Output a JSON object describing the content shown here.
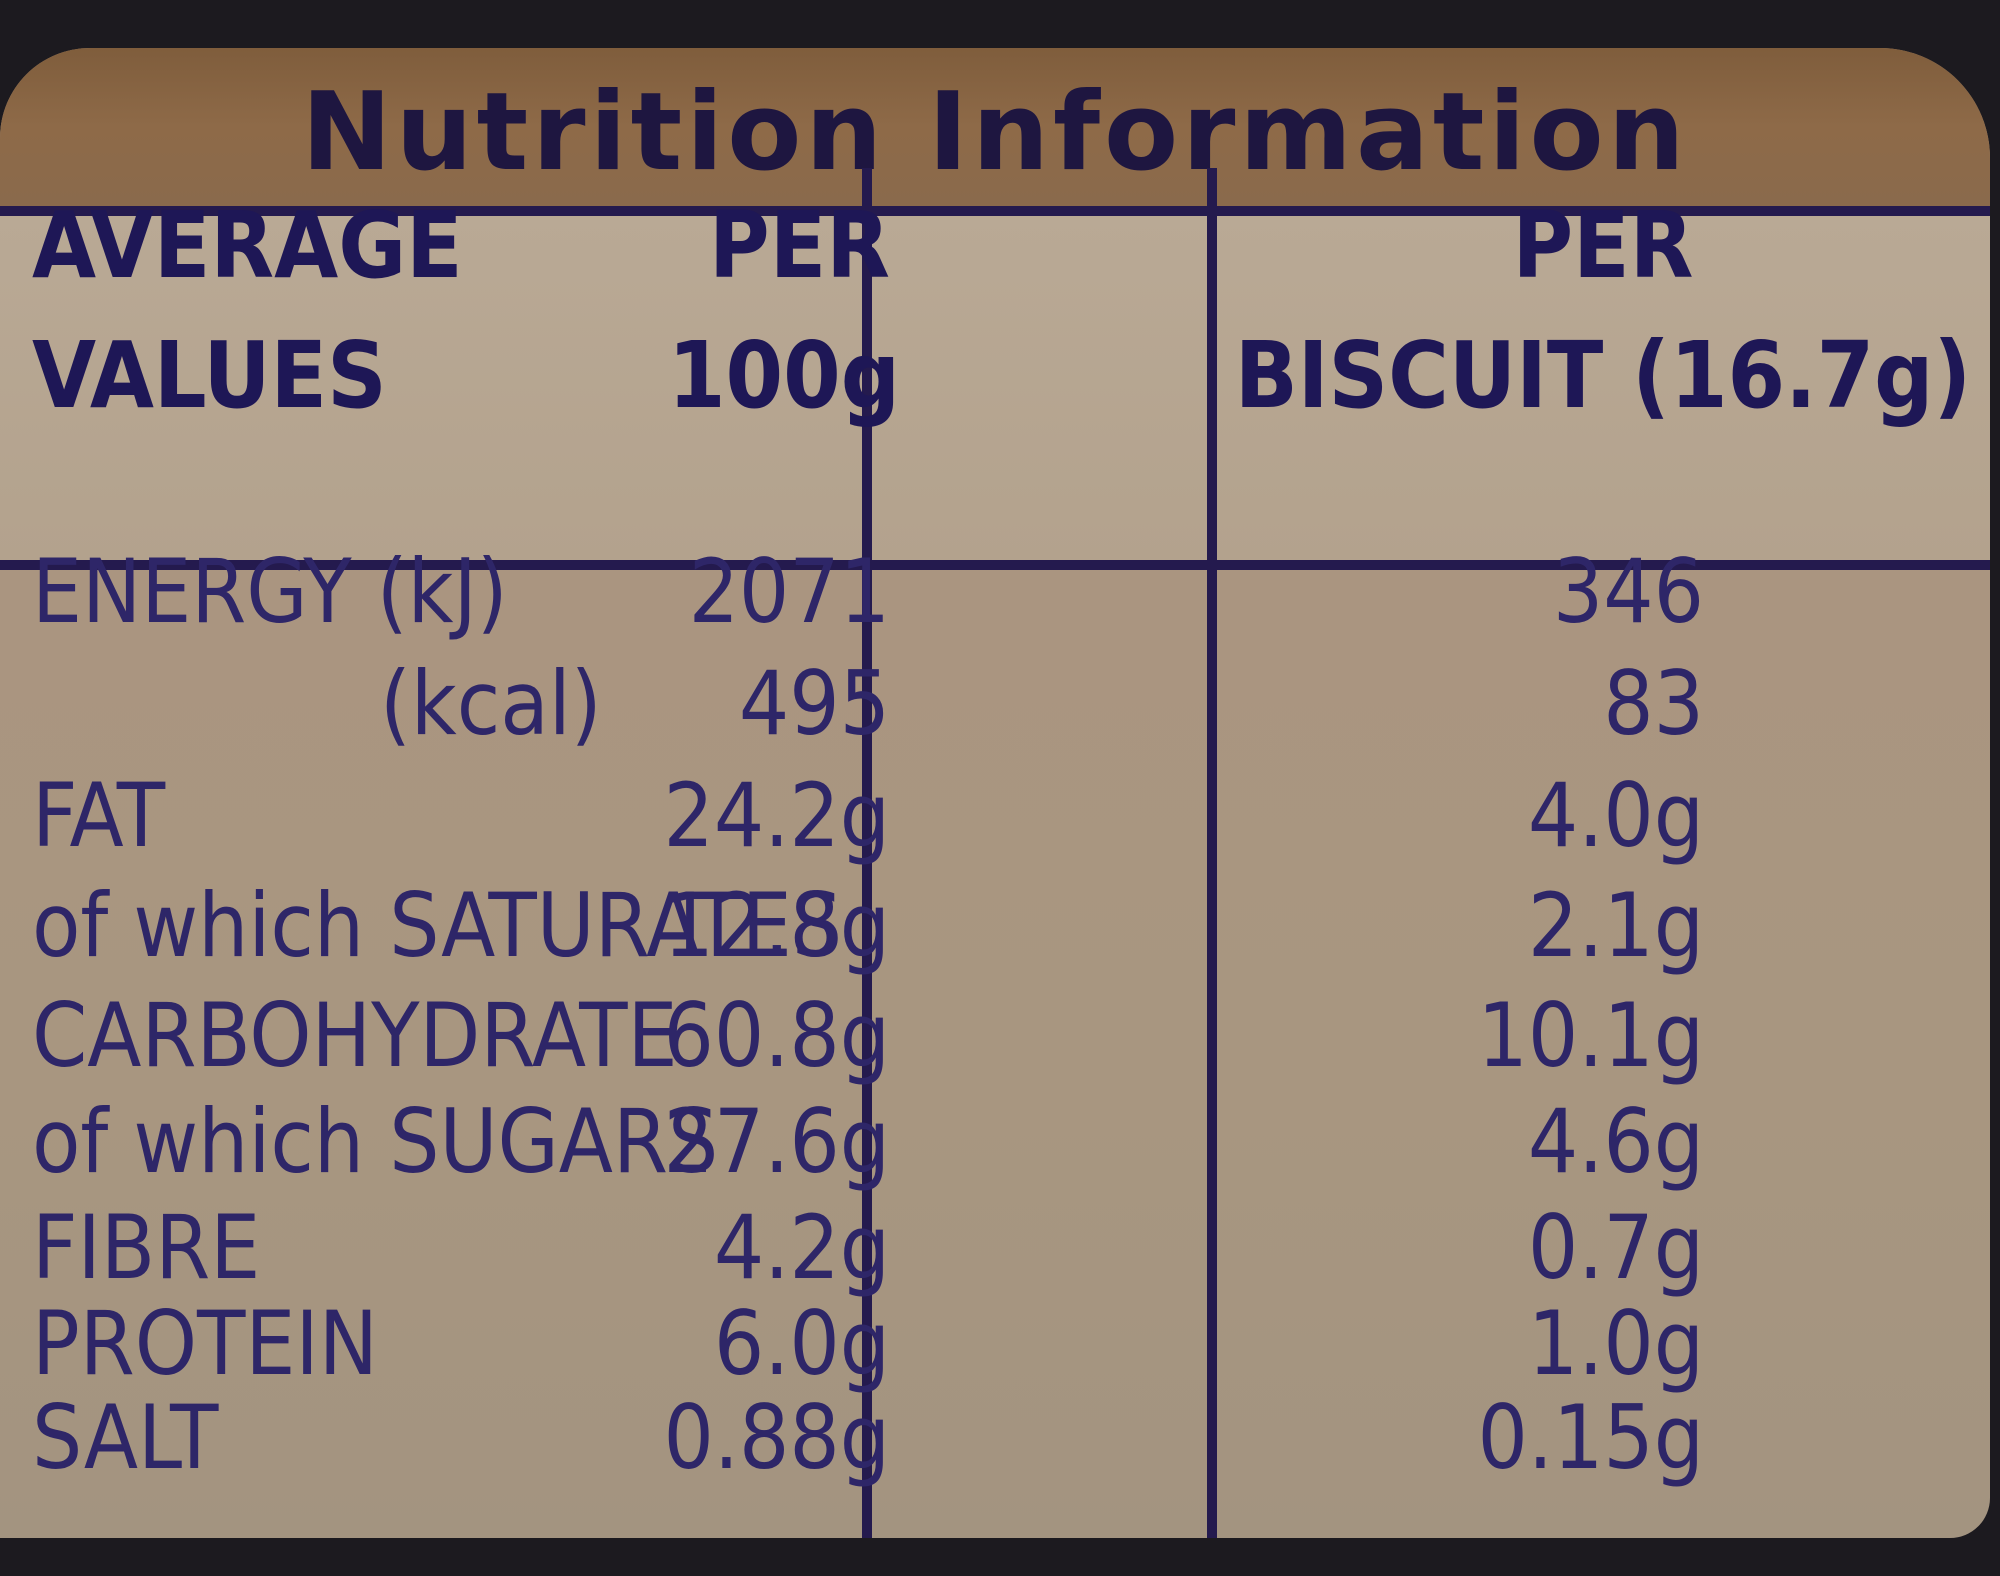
{
  "title": "Nutrition Information",
  "headers": {
    "col1": [
      "AVERAGE",
      "VALUES"
    ],
    "col2": [
      "PER",
      "100g"
    ],
    "col3": [
      "PER",
      "BISCUIT (16.7g)"
    ]
  },
  "rows": [
    {
      "label": "ENERGY (kJ)",
      "per100g": "2071",
      "perBiscuit": "346"
    },
    {
      "label": "(kcal)",
      "per100g": "495",
      "perBiscuit": "83"
    },
    {
      "label": "FAT",
      "per100g": "24.2g",
      "perBiscuit": "4.0g"
    },
    {
      "label": "of which SATURATES",
      "per100g": "12.8g",
      "perBiscuit": "2.1g"
    },
    {
      "label": "CARBOHYDRATE",
      "per100g": "60.8g",
      "perBiscuit": "10.1g"
    },
    {
      "label": "of which SUGARS",
      "per100g": "27.6g",
      "perBiscuit": "4.6g"
    },
    {
      "label": "FIBRE",
      "per100g": "4.2g",
      "perBiscuit": "0.7g"
    },
    {
      "label": "PROTEIN",
      "per100g": "6.0g",
      "perBiscuit": "1.0g"
    },
    {
      "label": "SALT",
      "per100g": "0.88g",
      "perBiscuit": "0.15g"
    }
  ]
}
